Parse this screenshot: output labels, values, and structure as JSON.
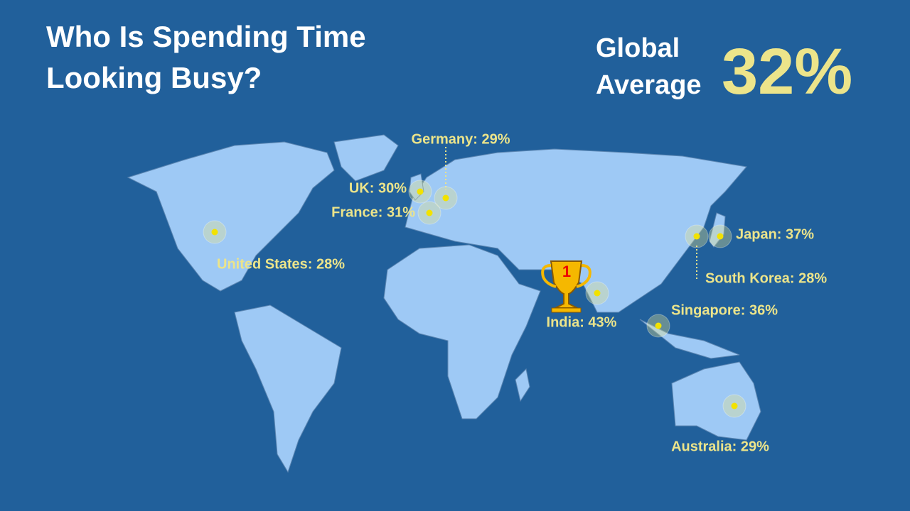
{
  "header": {
    "title_lines": [
      "Who Is Spending Time",
      "Looking Busy?"
    ],
    "average_label_lines": [
      "Global",
      "Average"
    ],
    "average_value": "32%"
  },
  "map": {
    "markers": [
      {
        "label": "United States: 28%"
      },
      {
        "label": "UK: 30%"
      },
      {
        "label": "Germany: 29%"
      },
      {
        "label": "France: 31%"
      },
      {
        "label": "India: 43%"
      },
      {
        "label": "Japan: 37%"
      },
      {
        "label": "South Korea: 28%"
      },
      {
        "label": "Singapore: 36%"
      },
      {
        "label": "Australia: 29%"
      }
    ],
    "rank_badge": "1"
  }
}
